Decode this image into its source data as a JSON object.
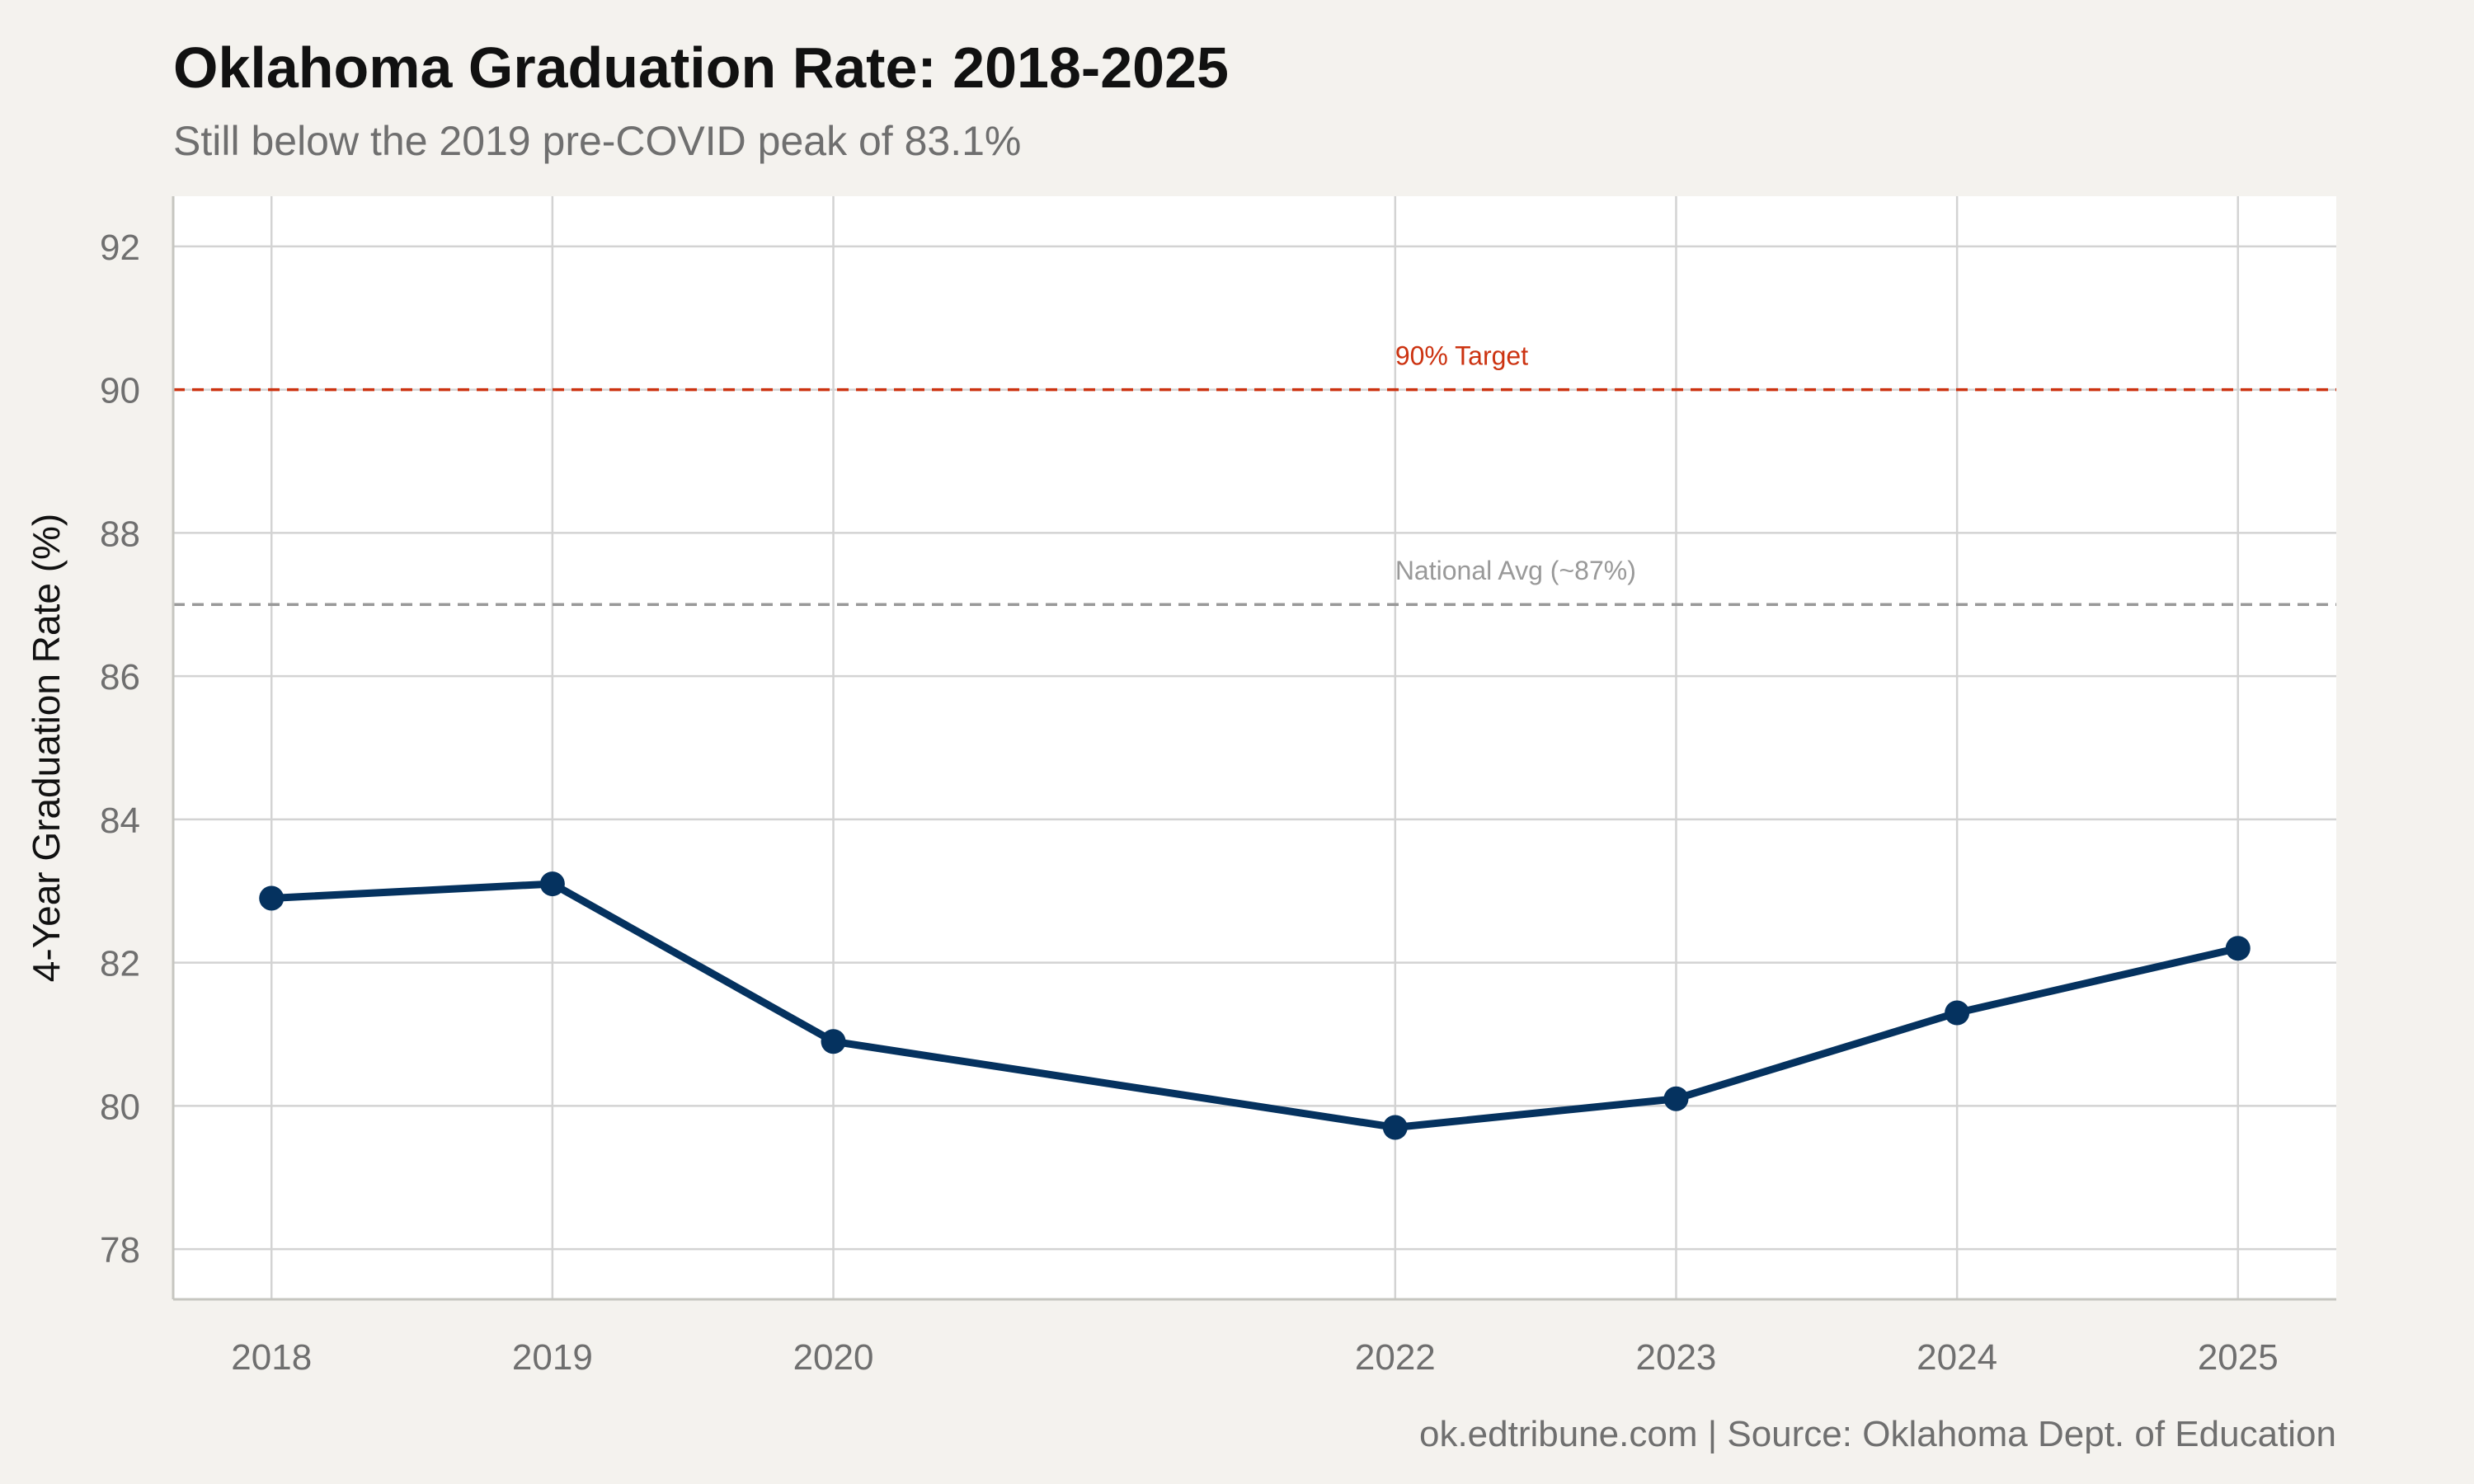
{
  "chart_data": {
    "type": "line",
    "title": "Oklahoma Graduation Rate: 2018-2025",
    "subtitle": "Still below the 2019 pre-COVID peak of 83.1%",
    "caption": "ok.edtribune.com | Source: Oklahoma Dept. of Education",
    "xlabel": "",
    "ylabel": "4-Year Graduation Rate (%)",
    "x": [
      2018,
      2019,
      2020,
      2022,
      2023,
      2024,
      2025
    ],
    "x_tick_labels": [
      "2018",
      "2019",
      "2020",
      "2022",
      "2023",
      "2024",
      "2025"
    ],
    "xlim": [
      2017.65,
      2025.35
    ],
    "ylim": [
      77.3,
      92.7
    ],
    "y_ticks": [
      78,
      80,
      82,
      84,
      86,
      88,
      90,
      92
    ],
    "y_tick_labels": [
      "78",
      "80",
      "82",
      "84",
      "86",
      "88",
      "90",
      "92"
    ],
    "grid": true,
    "series": [
      {
        "values": [
          82.9,
          83.1,
          80.9,
          79.7,
          80.1,
          81.3,
          82.2
        ],
        "color": "#05325f"
      }
    ],
    "reference_lines": [
      {
        "y": 90,
        "label": "90% Target",
        "color": "#cc3311",
        "style": "dashed",
        "label_x": 2022
      },
      {
        "y": 87,
        "label": "National Avg (~87%)",
        "color": "#999999",
        "style": "dashed",
        "label_x": 2022
      }
    ],
    "colors": {
      "background": "#f4f2ee",
      "panel": "#ffffff",
      "grid": "#d3d3d3",
      "axis": "#c6c6c0"
    }
  }
}
